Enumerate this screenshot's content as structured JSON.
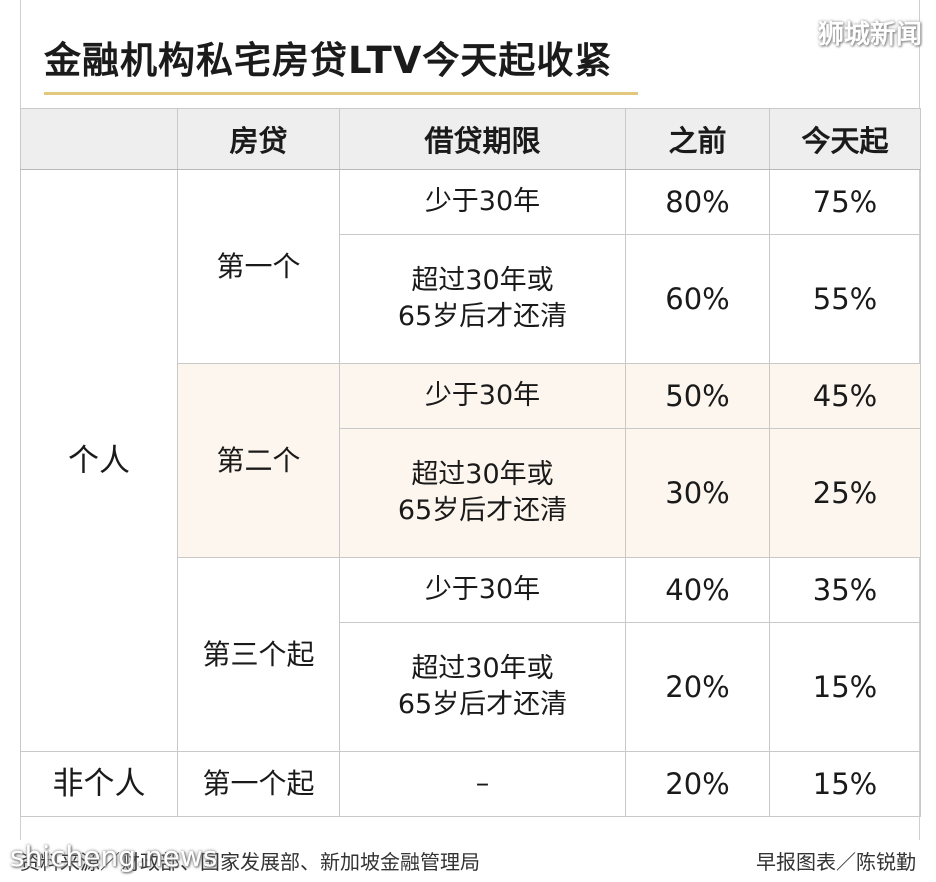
{
  "title": "金融机构私宅房贷LTV今天起收紧",
  "watermark_top": "狮城新闻",
  "watermark_bottom": "shicheng.news",
  "header": {
    "category": "",
    "loan": "房贷",
    "term": "借贷期限",
    "before": "之前",
    "from_today": "今天起"
  },
  "groups": {
    "individual": "个人",
    "non_individual": "非个人"
  },
  "rows": [
    {
      "loan": "第一个",
      "term": [
        "少于30年"
      ],
      "before": "80%",
      "after": "75%"
    },
    {
      "loan": "",
      "term": [
        "超过30年或",
        "65岁后才还清"
      ],
      "before": "60%",
      "after": "55%"
    },
    {
      "loan": "第二个",
      "term": [
        "少于30年"
      ],
      "before": "50%",
      "after": "45%"
    },
    {
      "loan": "",
      "term": [
        "超过30年或",
        "65岁后才还清"
      ],
      "before": "30%",
      "after": "25%"
    },
    {
      "loan": "第三个起",
      "term": [
        "少于30年"
      ],
      "before": "40%",
      "after": "35%"
    },
    {
      "loan": "",
      "term": [
        "超过30年或",
        "65岁后才还清"
      ],
      "before": "20%",
      "after": "15%"
    },
    {
      "loan": "第一个起",
      "term": [
        "–"
      ],
      "before": "20%",
      "after": "15%"
    }
  ],
  "footer": {
    "source": "资料来源／财政部、国家发展部、新加坡金融管理局",
    "credit": "早报图表／陈锐勤"
  },
  "colors": {
    "title_rule": "#e2c77e",
    "tint": "#fdf6ee",
    "header_bg": "#eeeeee"
  }
}
